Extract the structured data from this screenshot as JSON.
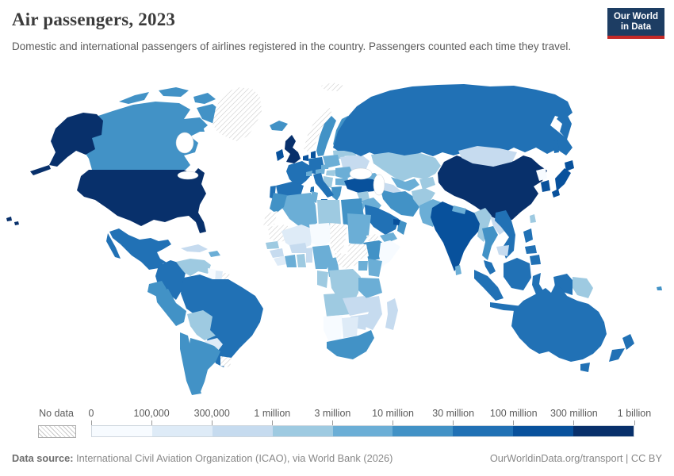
{
  "header": {
    "title": "Air passengers, 2023",
    "subtitle": "Domestic and international passengers of airlines registered in the country. Passengers counted each time they travel.",
    "logo": {
      "line1": "Our World",
      "line2": "in Data",
      "bg_color": "#1d3d63",
      "accent_color": "#c42a28",
      "text_color": "#ffffff"
    }
  },
  "legend": {
    "no_data_label": "No data"
  },
  "footer": {
    "source_prefix": "Data source:",
    "source_text": " International Civil Aviation Organization (ICAO), via World Bank (2026)",
    "credit": "OurWorldinData.org/transport | CC BY"
  },
  "chart_data": {
    "type": "heatmap",
    "subtype": "world-choropleth",
    "title": "Air passengers, 2023",
    "unit": "air passengers carried per year",
    "legend_position": "bottom",
    "bin_edges": [
      "0",
      "100,000",
      "300,000",
      "1 million",
      "3 million",
      "10 million",
      "30 million",
      "100 million",
      "300 million",
      "1 billion"
    ],
    "bin_colors": [
      "#f7fbff",
      "#deebf7",
      "#c6dbef",
      "#9ecae1",
      "#6baed6",
      "#4292c6",
      "#2171b5",
      "#08519c",
      "#08306b"
    ],
    "no_data_fill": "diagonal-hatch",
    "country_bins": {
      "united-states": 9,
      "canada": 6,
      "greenland": 0,
      "mexico": 7,
      "guatemala": 3,
      "honduras": 3,
      "nicaragua": 2,
      "costa-rica": 7,
      "panama": 7,
      "cuba": 3,
      "hispaniola": 5,
      "trinidad": 8,
      "colombia": 7,
      "venezuela": 4,
      "guyana": 1,
      "suriname": 2,
      "french-guiana": 0,
      "ecuador": 6,
      "peru": 6,
      "brazil": 7,
      "bolivia": 4,
      "paraguay": 2,
      "chile": 6,
      "argentina": 6,
      "uruguay": 0,
      "iceland": 6,
      "svalbard": 0,
      "norway": 0,
      "sweden": 6,
      "finland": 6,
      "baltics": 4,
      "denmark": 8,
      "united-kingdom": 9,
      "ireland": 8,
      "netherlands": 8,
      "germany": 7,
      "poland": 5,
      "belarus": 4,
      "ukraine": 3,
      "france": 7,
      "spain": 7,
      "portugal": 7,
      "italy": 7,
      "switzerland": 5,
      "austria": 5,
      "czechia": 5,
      "hungary": 4,
      "balkans": 4,
      "romania": 5,
      "bulgaria": 5,
      "greece": 6,
      "turkey": 8,
      "russia": 7,
      "kazakhstan": 4,
      "caucasus": 5,
      "uzbekistan": 5,
      "turkmenistan": 3,
      "kyrgyzstan-tajikistan": 4,
      "syria": 4,
      "iraq": 5,
      "israel": 8,
      "jordan": 5,
      "saudi-arabia": 7,
      "yemen": 5,
      "oman": 6,
      "uae": 8,
      "iran": 6,
      "afghanistan": 4,
      "pakistan": 5,
      "india": 8,
      "nepal": 5,
      "bangladesh": 8,
      "sri-lanka": 5,
      "china": 9,
      "mongolia": 3,
      "north-korea": 1,
      "south-korea": 8,
      "japan": 8,
      "taiwan": 4,
      "myanmar": 4,
      "thailand": 6,
      "laos": 3,
      "vietnam": 7,
      "cambodia": 3,
      "malaysia": 7,
      "indonesia": 7,
      "papua-new-guinea": 4,
      "philippines": 7,
      "egypt": 6,
      "libya": 4,
      "tunisia": 5,
      "algeria": 5,
      "morocco": 6,
      "western-sahara": 0,
      "mauritania": 0,
      "mali": 2,
      "niger": 1,
      "chad": 0,
      "sudan": 5,
      "eritrea": 0,
      "ethiopia": 6,
      "somalia": 1,
      "senegal": 4,
      "guinea": 3,
      "sierra-leone-liberia": 2,
      "ivory-coast": 5,
      "ghana": 4,
      "burkina-faso": 3,
      "togo-benin": 3,
      "nigeria": 5,
      "cameroon": 5,
      "central-african-republic": 0,
      "south-sudan": 0,
      "uganda": 5,
      "kenya": 5,
      "dr-congo": 4,
      "congo-gabon": 4,
      "tanzania": 5,
      "angola": 4,
      "zambia": 3,
      "mozambique": 3,
      "zimbabwe": 3,
      "namibia": 1,
      "botswana": 2,
      "south-africa": 6,
      "madagascar": 3,
      "australia": 7,
      "new-zealand": 7,
      "fiji": 6
    }
  }
}
